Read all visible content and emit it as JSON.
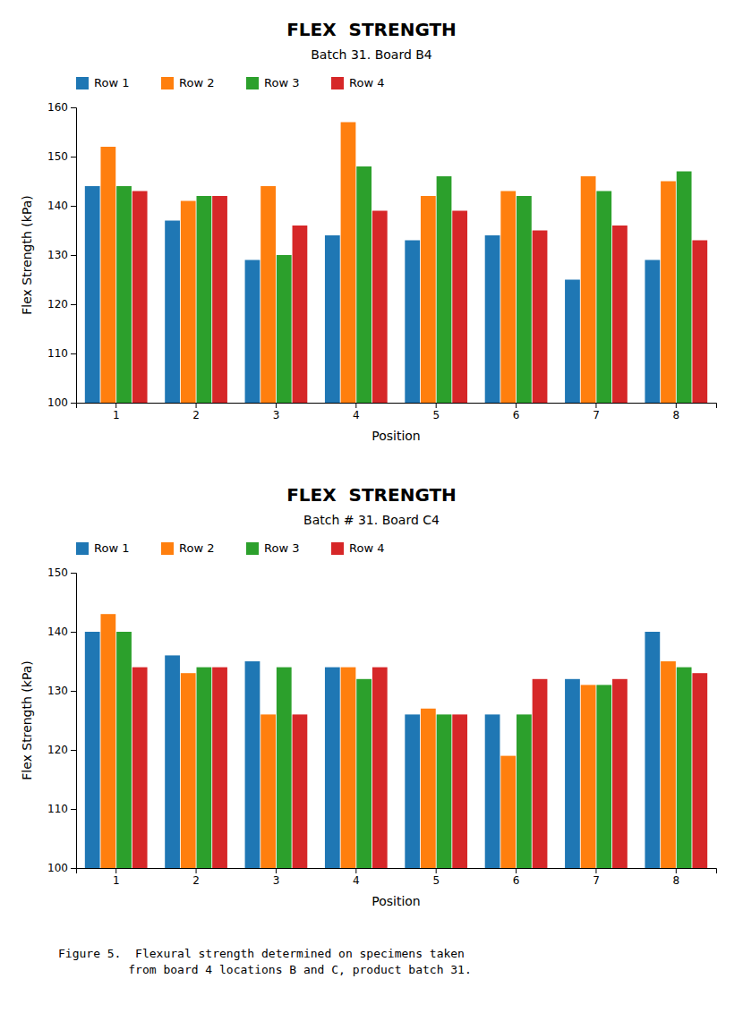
{
  "chart_data": [
    {
      "type": "bar",
      "title": "FLEX  STRENGTH",
      "subtitle": "Batch 31. Board B4",
      "xlabel": "Position",
      "ylabel": "Flex Strength (kPa)",
      "categories": [
        "1",
        "2",
        "3",
        "4",
        "5",
        "6",
        "7",
        "8"
      ],
      "series": [
        {
          "name": "Row 1",
          "values": [
            144,
            137,
            129,
            134,
            133,
            134,
            125,
            129
          ]
        },
        {
          "name": "Row 2",
          "values": [
            152,
            141,
            144,
            157,
            142,
            143,
            146,
            145
          ]
        },
        {
          "name": "Row 3",
          "values": [
            144,
            142,
            130,
            148,
            146,
            142,
            143,
            147
          ]
        },
        {
          "name": "Row 4",
          "values": [
            143,
            142,
            136,
            139,
            139,
            135,
            136,
            133
          ]
        }
      ],
      "ylim": [
        100,
        160
      ],
      "yticks": [
        100,
        110,
        120,
        130,
        140,
        150,
        160
      ],
      "grid": false,
      "legend": "top"
    },
    {
      "type": "bar",
      "title": "FLEX  STRENGTH",
      "subtitle": "Batch # 31. Board C4",
      "xlabel": "Position",
      "ylabel": "Flex Strength (kPa)",
      "categories": [
        "1",
        "2",
        "3",
        "4",
        "5",
        "6",
        "7",
        "8"
      ],
      "series": [
        {
          "name": "Row 1",
          "values": [
            140,
            136,
            135,
            134,
            126,
            126,
            132,
            140
          ]
        },
        {
          "name": "Row 2",
          "values": [
            143,
            133,
            126,
            134,
            127,
            119,
            131,
            135
          ]
        },
        {
          "name": "Row 3",
          "values": [
            140,
            134,
            134,
            132,
            126,
            126,
            131,
            134
          ]
        },
        {
          "name": "Row 4",
          "values": [
            134,
            134,
            126,
            134,
            126,
            132,
            132,
            133
          ]
        }
      ],
      "ylim": [
        100,
        150
      ],
      "yticks": [
        100,
        110,
        120,
        130,
        140,
        150
      ],
      "grid": false,
      "legend": "top",
      "annotations": [
        "Figure 5.  Flexural strength determined on specimens taken",
        "          from board 4 locations B and C, product batch 31."
      ]
    }
  ]
}
